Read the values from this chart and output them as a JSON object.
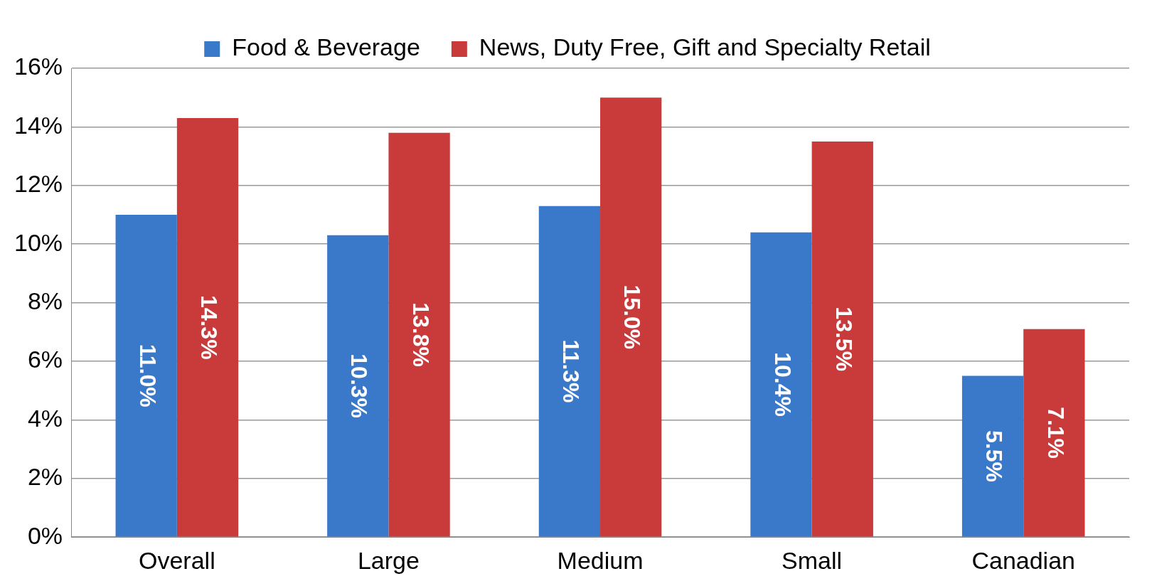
{
  "chart_data": {
    "type": "bar",
    "categories": [
      "Overall",
      "Large",
      "Medium",
      "Small",
      "Canadian"
    ],
    "series": [
      {
        "name": "Food & Beverage",
        "color": "#3a78c9",
        "values": [
          11.0,
          10.3,
          11.3,
          10.4,
          5.5
        ],
        "value_labels": [
          "11.0%",
          "10.3%",
          "11.3%",
          "10.4%",
          "5.5%"
        ]
      },
      {
        "name": "News, Duty Free, Gift and Specialty Retail",
        "color": "#c93a3a",
        "values": [
          14.3,
          13.8,
          15.0,
          13.5,
          7.1
        ],
        "value_labels": [
          "14.3%",
          "13.8%",
          "15.0%",
          "13.5%",
          "7.1%"
        ]
      }
    ],
    "ylim": [
      0,
      16
    ],
    "yticks": [
      {
        "value": 0,
        "label": "0%"
      },
      {
        "value": 2,
        "label": "2%"
      },
      {
        "value": 4,
        "label": "4%"
      },
      {
        "value": 6,
        "label": "6%"
      },
      {
        "value": 8,
        "label": "8%"
      },
      {
        "value": 10,
        "label": "10%"
      },
      {
        "value": 12,
        "label": "12%"
      },
      {
        "value": 14,
        "label": "14%"
      },
      {
        "value": 16,
        "label": "16%"
      }
    ],
    "grid": "y",
    "legend": "top"
  }
}
